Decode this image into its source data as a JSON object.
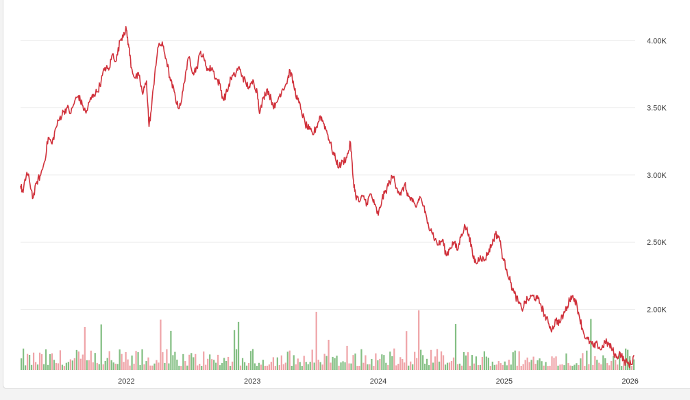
{
  "chart_data": {
    "type": "line",
    "title": "",
    "xlabel": "",
    "ylabel": "",
    "xlim": [
      2021.16,
      2026.04
    ],
    "ylim": [
      1550,
      4200
    ],
    "grid": "horizontal",
    "legend": "none",
    "y_ticks": [
      {
        "value": 4000,
        "label": "4.00K"
      },
      {
        "value": 3500,
        "label": "3.50K"
      },
      {
        "value": 3000,
        "label": "3.00K"
      },
      {
        "value": 2500,
        "label": "2.50K"
      },
      {
        "value": 2000,
        "label": "2.00K"
      }
    ],
    "x_ticks": [
      {
        "value": 2022,
        "label": "2022"
      },
      {
        "value": 2023,
        "label": "2023"
      },
      {
        "value": 2024,
        "label": "2024"
      },
      {
        "value": 2025,
        "label": "2025"
      },
      {
        "value": 2026,
        "label": "2026"
      }
    ],
    "series": [
      {
        "color": "#d0313b",
        "points": [
          [
            2021.16,
            2920
          ],
          [
            2021.18,
            2870
          ],
          [
            2021.21,
            3020
          ],
          [
            2021.23,
            2960
          ],
          [
            2021.26,
            2830
          ],
          [
            2021.29,
            2950
          ],
          [
            2021.32,
            3000
          ],
          [
            2021.35,
            3100
          ],
          [
            2021.38,
            3280
          ],
          [
            2021.41,
            3230
          ],
          [
            2021.44,
            3350
          ],
          [
            2021.47,
            3420
          ],
          [
            2021.5,
            3470
          ],
          [
            2021.53,
            3500
          ],
          [
            2021.56,
            3460
          ],
          [
            2021.59,
            3550
          ],
          [
            2021.62,
            3590
          ],
          [
            2021.65,
            3520
          ],
          [
            2021.68,
            3460
          ],
          [
            2021.71,
            3550
          ],
          [
            2021.74,
            3600
          ],
          [
            2021.77,
            3620
          ],
          [
            2021.8,
            3700
          ],
          [
            2021.83,
            3800
          ],
          [
            2021.86,
            3780
          ],
          [
            2021.89,
            3900
          ],
          [
            2021.92,
            3850
          ],
          [
            2021.95,
            4000
          ],
          [
            2021.98,
            4060
          ],
          [
            2022.0,
            4080
          ],
          [
            2022.02,
            3950
          ],
          [
            2022.04,
            3800
          ],
          [
            2022.07,
            3720
          ],
          [
            2022.1,
            3740
          ],
          [
            2022.13,
            3600
          ],
          [
            2022.16,
            3700
          ],
          [
            2022.18,
            3360
          ],
          [
            2022.2,
            3500
          ],
          [
            2022.23,
            3800
          ],
          [
            2022.26,
            3980
          ],
          [
            2022.29,
            3960
          ],
          [
            2022.32,
            3850
          ],
          [
            2022.35,
            3700
          ],
          [
            2022.38,
            3620
          ],
          [
            2022.41,
            3500
          ],
          [
            2022.44,
            3560
          ],
          [
            2022.47,
            3760
          ],
          [
            2022.5,
            3880
          ],
          [
            2022.53,
            3760
          ],
          [
            2022.56,
            3800
          ],
          [
            2022.59,
            3920
          ],
          [
            2022.62,
            3850
          ],
          [
            2022.65,
            3780
          ],
          [
            2022.68,
            3800
          ],
          [
            2022.71,
            3720
          ],
          [
            2022.74,
            3680
          ],
          [
            2022.77,
            3560
          ],
          [
            2022.8,
            3620
          ],
          [
            2022.83,
            3720
          ],
          [
            2022.86,
            3740
          ],
          [
            2022.89,
            3800
          ],
          [
            2022.92,
            3740
          ],
          [
            2022.95,
            3680
          ],
          [
            2022.98,
            3650
          ],
          [
            2023.01,
            3700
          ],
          [
            2023.04,
            3610
          ],
          [
            2023.06,
            3460
          ],
          [
            2023.09,
            3580
          ],
          [
            2023.12,
            3640
          ],
          [
            2023.15,
            3560
          ],
          [
            2023.18,
            3500
          ],
          [
            2023.21,
            3580
          ],
          [
            2023.24,
            3640
          ],
          [
            2023.27,
            3680
          ],
          [
            2023.3,
            3780
          ],
          [
            2023.33,
            3660
          ],
          [
            2023.36,
            3560
          ],
          [
            2023.39,
            3480
          ],
          [
            2023.42,
            3380
          ],
          [
            2023.45,
            3340
          ],
          [
            2023.48,
            3300
          ],
          [
            2023.51,
            3360
          ],
          [
            2023.54,
            3440
          ],
          [
            2023.57,
            3380
          ],
          [
            2023.6,
            3300
          ],
          [
            2023.63,
            3200
          ],
          [
            2023.66,
            3120
          ],
          [
            2023.69,
            3060
          ],
          [
            2023.72,
            3100
          ],
          [
            2023.75,
            3130
          ],
          [
            2023.78,
            3240
          ],
          [
            2023.8,
            2980
          ],
          [
            2023.82,
            2850
          ],
          [
            2023.85,
            2800
          ],
          [
            2023.88,
            2840
          ],
          [
            2023.91,
            2790
          ],
          [
            2023.94,
            2860
          ],
          [
            2023.97,
            2780
          ],
          [
            2024.0,
            2700
          ],
          [
            2024.03,
            2820
          ],
          [
            2024.06,
            2880
          ],
          [
            2024.09,
            2950
          ],
          [
            2024.12,
            2990
          ],
          [
            2024.15,
            2900
          ],
          [
            2024.18,
            2850
          ],
          [
            2024.21,
            2930
          ],
          [
            2024.24,
            2840
          ],
          [
            2024.27,
            2800
          ],
          [
            2024.3,
            2760
          ],
          [
            2024.33,
            2840
          ],
          [
            2024.36,
            2770
          ],
          [
            2024.39,
            2640
          ],
          [
            2024.42,
            2600
          ],
          [
            2024.45,
            2520
          ],
          [
            2024.48,
            2480
          ],
          [
            2024.51,
            2520
          ],
          [
            2024.54,
            2400
          ],
          [
            2024.57,
            2460
          ],
          [
            2024.6,
            2500
          ],
          [
            2024.63,
            2440
          ],
          [
            2024.66,
            2560
          ],
          [
            2024.69,
            2620
          ],
          [
            2024.72,
            2560
          ],
          [
            2024.75,
            2400
          ],
          [
            2024.78,
            2340
          ],
          [
            2024.81,
            2400
          ],
          [
            2024.84,
            2360
          ],
          [
            2024.87,
            2420
          ],
          [
            2024.9,
            2480
          ],
          [
            2024.93,
            2560
          ],
          [
            2024.96,
            2540
          ],
          [
            2024.99,
            2380
          ],
          [
            2025.02,
            2300
          ],
          [
            2025.05,
            2200
          ],
          [
            2025.08,
            2120
          ],
          [
            2025.11,
            2060
          ],
          [
            2025.14,
            2000
          ],
          [
            2025.17,
            2060
          ],
          [
            2025.2,
            2080
          ],
          [
            2025.23,
            2100
          ],
          [
            2025.26,
            2080
          ],
          [
            2025.29,
            2040
          ],
          [
            2025.32,
            1960
          ],
          [
            2025.35,
            1900
          ],
          [
            2025.38,
            1850
          ],
          [
            2025.41,
            1920
          ],
          [
            2025.44,
            1900
          ],
          [
            2025.47,
            1960
          ],
          [
            2025.5,
            2020
          ],
          [
            2025.53,
            2100
          ],
          [
            2025.56,
            2080
          ],
          [
            2025.59,
            1980
          ],
          [
            2025.62,
            1860
          ],
          [
            2025.65,
            1780
          ],
          [
            2025.68,
            1760
          ],
          [
            2025.71,
            1720
          ],
          [
            2025.74,
            1740
          ],
          [
            2025.77,
            1700
          ],
          [
            2025.8,
            1760
          ],
          [
            2025.83,
            1740
          ],
          [
            2025.86,
            1700
          ],
          [
            2025.89,
            1640
          ],
          [
            2025.92,
            1680
          ],
          [
            2025.95,
            1620
          ],
          [
            2025.98,
            1600
          ],
          [
            2026.01,
            1590
          ],
          [
            2026.03,
            1660
          ]
        ]
      }
    ],
    "volume_colors": {
      "up": "#6fb46f",
      "down": "#ec9499"
    },
    "volume_bins": 300,
    "volume_range": [
      1550,
      2000
    ]
  }
}
